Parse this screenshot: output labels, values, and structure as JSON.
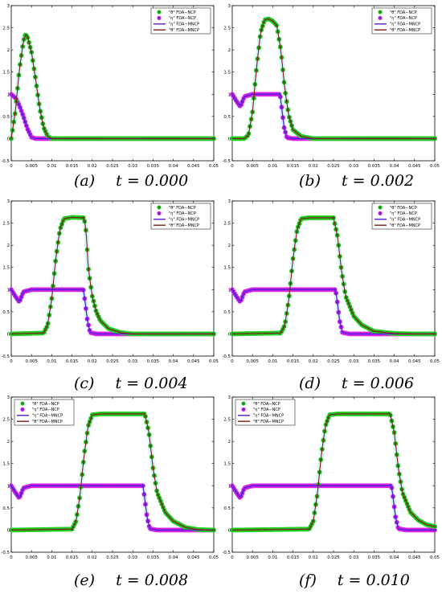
{
  "legend_labels": {
    "theta_ncp": "\"θ\" FDA−NCP",
    "eta_ncp": "\"η\" FDA−NCP",
    "eta_mncp": "\"η\" FDA−MNCP",
    "theta_mncp": "\"θ\" FDA−MNCP"
  },
  "colors": {
    "theta_ncp_marker_edge": "#22dd22",
    "theta_ncp_marker_face": "#228b22",
    "eta_ncp_marker_edge": "#ee22ee",
    "eta_ncp_marker_face": "#7a2bd6",
    "eta_mncp_line": "#5a1ad6",
    "theta_mncp_line": "#8b1a1a",
    "halo": "#b8f0f0"
  },
  "chart_data": [
    {
      "type": "line",
      "panel_label": "(a)",
      "time_label": "t = 0.000",
      "legend": [
        "\"θ\" FDA−NCP",
        "\"η\" FDA−NCP",
        "\"η\" FDA−MNCP",
        "\"θ\" FDA−MNCP"
      ],
      "legend_placement": "top-right",
      "xlim": [
        0,
        0.05
      ],
      "ylim": [
        -0.5,
        3
      ],
      "x_ticks": [
        0,
        0.005,
        0.01,
        0.015,
        0.02,
        0.025,
        0.03,
        0.035,
        0.04,
        0.045,
        0.05
      ],
      "x_tick_labels": [
        "0",
        "0.005",
        "0.01",
        "0.015",
        "0.02",
        "0.025",
        "0.03",
        "0.035",
        "0.04",
        "0.045",
        "0.05"
      ],
      "y_ticks": [
        -0.5,
        0,
        0.5,
        1,
        1.5,
        2,
        2.5,
        3
      ],
      "y_tick_labels": [
        "-0.5",
        "0",
        "0.5",
        "1",
        "1.5",
        "2",
        "2.5",
        "3"
      ],
      "series": [
        {
          "name": "\"θ\" FDA−NCP",
          "x": [
            0,
            0.001,
            0.002,
            0.003,
            0.0035,
            0.004,
            0.005,
            0.006,
            0.007,
            0.008,
            0.009,
            0.01,
            0.05
          ],
          "y": [
            0,
            0.6,
            1.55,
            2.2,
            2.35,
            2.3,
            1.95,
            1.35,
            0.7,
            0.25,
            0.05,
            0,
            0
          ]
        },
        {
          "name": "\"η\" FDA−NCP",
          "x": [
            0,
            0.001,
            0.002,
            0.003,
            0.004,
            0.005,
            0.006,
            0.05
          ],
          "y": [
            1,
            0.92,
            0.75,
            0.5,
            0.22,
            0.03,
            0,
            0
          ]
        }
      ]
    },
    {
      "type": "line",
      "panel_label": "(b)",
      "time_label": "t = 0.002",
      "legend": [
        "\"θ\" FDA−NCP",
        "\"η\" FDA−NCP",
        "\"η\" FDA−MNCP",
        "\"θ\" FDA−MNCP"
      ],
      "legend_placement": "top-right",
      "xlim": [
        0,
        0.05
      ],
      "ylim": [
        -0.5,
        3
      ],
      "x_ticks": [
        0,
        0.005,
        0.01,
        0.015,
        0.02,
        0.025,
        0.03,
        0.035,
        0.04,
        0.045,
        0.05
      ],
      "x_tick_labels": [
        "0",
        "0.005",
        "0.01",
        "0.015",
        "0.02",
        "0.025",
        "0.03",
        "0.035",
        "0.04",
        "0.045",
        "0.05"
      ],
      "y_ticks": [
        -0.5,
        0,
        0.5,
        1,
        1.5,
        2,
        2.5,
        3
      ],
      "y_tick_labels": [
        "-0.5",
        "0",
        "0.5",
        "1",
        "1.5",
        "2",
        "2.5",
        "3"
      ],
      "series": [
        {
          "name": "\"θ\" FDA−NCP",
          "x": [
            0,
            0.003,
            0.004,
            0.005,
            0.006,
            0.007,
            0.008,
            0.009,
            0.01,
            0.011,
            0.012,
            0.013,
            0.014,
            0.015,
            0.017,
            0.02,
            0.025,
            0.05
          ],
          "y": [
            0,
            0,
            0.08,
            0.6,
            1.6,
            2.4,
            2.68,
            2.7,
            2.65,
            2.55,
            2.0,
            1.1,
            0.5,
            0.2,
            0.05,
            0,
            0,
            0
          ]
        },
        {
          "name": "\"η\" FDA−NCP",
          "x": [
            0,
            0.001,
            0.002,
            0.003,
            0.005,
            0.006,
            0.01,
            0.0118,
            0.0122,
            0.0128,
            0.0135,
            0.015,
            0.05
          ],
          "y": [
            1,
            0.85,
            0.72,
            0.95,
            1,
            1,
            1,
            1,
            0.7,
            0.25,
            0.02,
            0,
            0
          ]
        }
      ]
    },
    {
      "type": "line",
      "panel_label": "(c)",
      "time_label": "t = 0.004",
      "legend": [
        "\"θ\" FDA−NCP",
        "\"η\" FDA−NCP",
        "\"η\" FDA−MNCP",
        "\"θ\" FDA−MNCP"
      ],
      "legend_placement": "top-right",
      "xlim": [
        0,
        0.05
      ],
      "ylim": [
        -0.5,
        3
      ],
      "x_ticks": [
        0,
        0.005,
        0.01,
        0.015,
        0.02,
        0.025,
        0.03,
        0.035,
        0.04,
        0.045,
        0.05
      ],
      "x_tick_labels": [
        "0",
        "0.005",
        "0.01",
        "0.015",
        "0.02",
        "0.025",
        "0.03",
        "0.035",
        "0.04",
        "0.045",
        "0.05"
      ],
      "y_ticks": [
        -0.5,
        0,
        0.5,
        1,
        1.5,
        2,
        2.5,
        3
      ],
      "y_tick_labels": [
        "-0.5",
        "0",
        "0.5",
        "1",
        "1.5",
        "2",
        "2.5",
        "3"
      ],
      "series": [
        {
          "name": "\"θ\" FDA−NCP",
          "x": [
            0,
            0.008,
            0.009,
            0.01,
            0.011,
            0.012,
            0.013,
            0.015,
            0.018,
            0.0185,
            0.019,
            0.02,
            0.021,
            0.022,
            0.024,
            0.027,
            0.03,
            0.035,
            0.05
          ],
          "y": [
            0,
            0.02,
            0.2,
            0.8,
            1.7,
            2.35,
            2.6,
            2.63,
            2.62,
            2.3,
            1.5,
            0.85,
            0.5,
            0.3,
            0.12,
            0.03,
            0,
            0,
            0
          ]
        },
        {
          "name": "\"η\" FDA−NCP",
          "x": [
            0,
            0.001,
            0.002,
            0.003,
            0.005,
            0.01,
            0.0178,
            0.0182,
            0.0188,
            0.0195,
            0.021,
            0.05
          ],
          "y": [
            1,
            0.85,
            0.72,
            0.95,
            1,
            1,
            1,
            0.75,
            0.3,
            0.03,
            0,
            0
          ]
        }
      ]
    },
    {
      "type": "line",
      "panel_label": "(d)",
      "time_label": "t = 0.006",
      "legend": [
        "\"θ\" FDA−NCP",
        "\"η\" FDA−NCP",
        "\"η\" FDA−MNCP",
        "\"θ\" FDA−MNCP"
      ],
      "legend_placement": "top-right",
      "xlim": [
        0,
        0.05
      ],
      "ylim": [
        -0.5,
        3
      ],
      "x_ticks": [
        0,
        0.005,
        0.01,
        0.015,
        0.02,
        0.025,
        0.03,
        0.035,
        0.04,
        0.045,
        0.05
      ],
      "x_tick_labels": [
        "0",
        "0.005",
        "0.01",
        "0.015",
        "0.02",
        "0.025",
        "0.03",
        "0.035",
        "0.04",
        "0.045",
        "0.05"
      ],
      "y_ticks": [
        -0.5,
        0,
        0.5,
        1,
        1.5,
        2,
        2.5,
        3
      ],
      "y_tick_labels": [
        "-0.5",
        "0",
        "0.5",
        "1",
        "1.5",
        "2",
        "2.5",
        "3"
      ],
      "series": [
        {
          "name": "\"θ\" FDA−NCP",
          "x": [
            0,
            0.012,
            0.013,
            0.014,
            0.015,
            0.016,
            0.017,
            0.019,
            0.025,
            0.026,
            0.027,
            0.028,
            0.03,
            0.032,
            0.035,
            0.04,
            0.045,
            0.05
          ],
          "y": [
            0,
            0.02,
            0.2,
            0.8,
            1.7,
            2.35,
            2.6,
            2.62,
            2.62,
            2.2,
            1.4,
            0.85,
            0.4,
            0.2,
            0.06,
            0.01,
            0,
            0
          ]
        },
        {
          "name": "\"η\" FDA−NCP",
          "x": [
            0,
            0.001,
            0.002,
            0.003,
            0.005,
            0.01,
            0.0255,
            0.0259,
            0.0265,
            0.0272,
            0.029,
            0.05
          ],
          "y": [
            1,
            0.85,
            0.72,
            0.95,
            1,
            1,
            1,
            0.75,
            0.3,
            0.03,
            0,
            0
          ]
        }
      ]
    },
    {
      "type": "line",
      "panel_label": "(e)",
      "time_label": "t = 0.008",
      "legend": [
        "\"θ\" FDA−NCP",
        "\"η\" FDA−NCP",
        "\"η\" FDA−MNCP",
        "\"θ\" FDA−MNCP"
      ],
      "legend_placement": "top-left",
      "xlim": [
        0,
        0.05
      ],
      "ylim": [
        -0.5,
        3
      ],
      "x_ticks": [
        0,
        0.005,
        0.01,
        0.015,
        0.02,
        0.025,
        0.03,
        0.035,
        0.04,
        0.045,
        0.05
      ],
      "x_tick_labels": [
        "0",
        "0.005",
        "0.01",
        "0.015",
        "0.02",
        "0.025",
        "0.03",
        "0.035",
        "0.04",
        "0.045",
        "0.05"
      ],
      "y_ticks": [
        -0.5,
        0,
        0.5,
        1,
        1.5,
        2,
        2.5,
        3
      ],
      "y_tick_labels": [
        "-0.5",
        "0",
        "0.5",
        "1",
        "1.5",
        "2",
        "2.5",
        "3"
      ],
      "series": [
        {
          "name": "\"θ\" FDA−NCP",
          "x": [
            0,
            0.015,
            0.016,
            0.017,
            0.018,
            0.019,
            0.02,
            0.022,
            0.033,
            0.034,
            0.035,
            0.036,
            0.038,
            0.04,
            0.043,
            0.046,
            0.05
          ],
          "y": [
            0,
            0.02,
            0.2,
            0.8,
            1.7,
            2.35,
            2.6,
            2.62,
            2.62,
            2.2,
            1.4,
            0.85,
            0.4,
            0.2,
            0.06,
            0.01,
            0
          ]
        },
        {
          "name": "\"η\" FDA−NCP",
          "x": [
            0,
            0.001,
            0.002,
            0.003,
            0.005,
            0.01,
            0.0325,
            0.0329,
            0.0335,
            0.0342,
            0.036,
            0.05
          ],
          "y": [
            1,
            0.85,
            0.72,
            0.95,
            1,
            1,
            1,
            0.75,
            0.3,
            0.03,
            0,
            0
          ]
        }
      ]
    },
    {
      "type": "line",
      "panel_label": "(f)",
      "time_label": "t = 0.010",
      "legend": [
        "\"θ\" FDA−NCP",
        "\"η\" FDA−NCP",
        "\"η\" FDA−MNCP",
        "\"θ\" FDA−MNCP"
      ],
      "legend_placement": "top-left",
      "xlim": [
        0,
        0.05
      ],
      "ylim": [
        -0.5,
        3
      ],
      "x_ticks": [
        0,
        0.005,
        0.01,
        0.015,
        0.02,
        0.025,
        0.03,
        0.035,
        0.04,
        0.045,
        0.05
      ],
      "x_tick_labels": [
        "0",
        "0.005",
        "0.01",
        "0.015",
        "0.02",
        "0.025",
        "0.03",
        "0.035",
        "0.04",
        "0.045",
        "0.05"
      ],
      "y_ticks": [
        -0.5,
        0,
        0.5,
        1,
        1.5,
        2,
        2.5,
        3
      ],
      "y_tick_labels": [
        "-0.5",
        "0",
        "0.5",
        "1",
        "1.5",
        "2",
        "2.5",
        "3"
      ],
      "series": [
        {
          "name": "\"θ\" FDA−NCP",
          "x": [
            0,
            0.019,
            0.02,
            0.021,
            0.022,
            0.023,
            0.024,
            0.026,
            0.039,
            0.04,
            0.041,
            0.042,
            0.044,
            0.046,
            0.048,
            0.05
          ],
          "y": [
            0,
            0.02,
            0.2,
            0.8,
            1.7,
            2.35,
            2.6,
            2.62,
            2.62,
            2.2,
            1.4,
            0.85,
            0.4,
            0.22,
            0.12,
            0.08
          ]
        },
        {
          "name": "\"η\" FDA−NCP",
          "x": [
            0,
            0.001,
            0.002,
            0.003,
            0.005,
            0.01,
            0.0393,
            0.0397,
            0.0403,
            0.041,
            0.043,
            0.05
          ],
          "y": [
            1,
            0.85,
            0.72,
            0.95,
            1,
            1,
            1,
            0.75,
            0.3,
            0.03,
            0,
            0
          ]
        }
      ]
    }
  ]
}
